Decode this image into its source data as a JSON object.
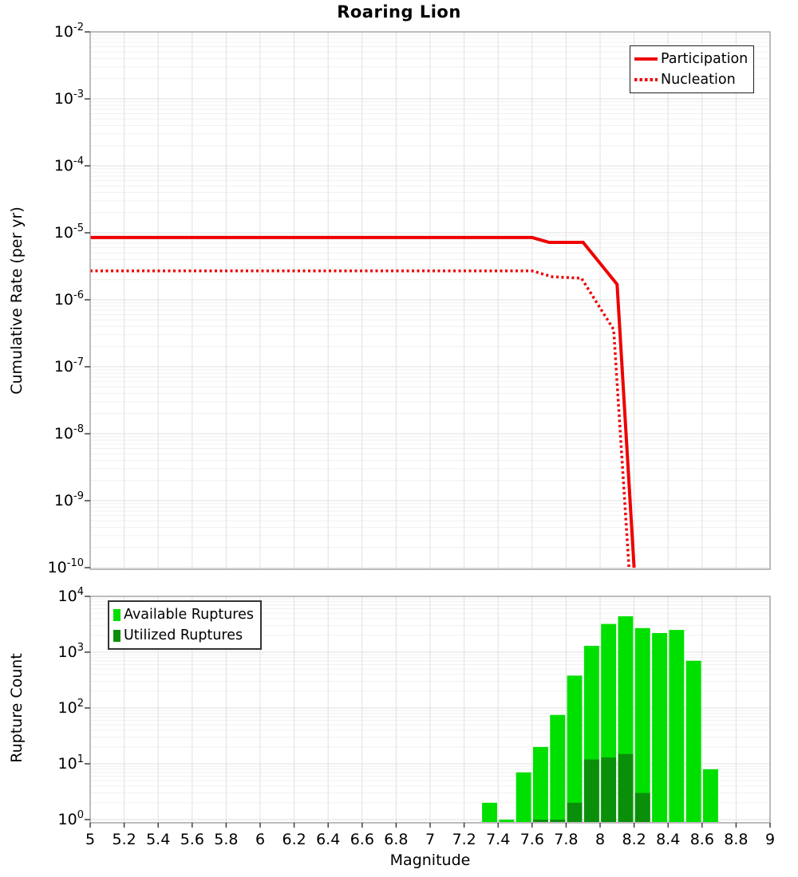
{
  "title": "Roaring Lion",
  "colors": {
    "line_red": "#ee0000",
    "available_green": "#00e000",
    "utilized_green": "#0a8f0a",
    "grid_major": "#e0e0e0",
    "grid_minor": "#f0f0f0",
    "plot_border": "#a6a6a6",
    "tick": "#333333",
    "background": "#ffffff"
  },
  "x_axis": {
    "label": "Magnitude",
    "min": 5,
    "max": 9,
    "tick_labels": [
      "5",
      "5.2",
      "5.4",
      "5.6",
      "5.8",
      "6",
      "6.2",
      "6.4",
      "6.6",
      "6.8",
      "7",
      "7.2",
      "7.4",
      "7.6",
      "7.8",
      "8",
      "8.2",
      "8.4",
      "8.6",
      "8.8",
      "9"
    ]
  },
  "chart_data": [
    {
      "type": "line",
      "panel": "top",
      "title": "Roaring Lion",
      "xlabel": "",
      "ylabel": "Cumulative Rate (per yr)",
      "x_range": [
        5,
        9
      ],
      "y_scale": "log",
      "y_range": [
        1e-10,
        0.01
      ],
      "y_tick_exponents": [
        "-2",
        "-3",
        "-4",
        "-5",
        "-6",
        "-7",
        "-8",
        "-9",
        "-10"
      ],
      "grid": true,
      "legend_position": "top-right",
      "series": [
        {
          "name": "Participation",
          "line_style": "solid",
          "color": "#ee0000",
          "points": [
            [
              5.0,
              8.5e-06
            ],
            [
              7.6,
              8.5e-06
            ],
            [
              7.7,
              7.2e-06
            ],
            [
              7.9,
              7.2e-06
            ],
            [
              8.1,
              1.7e-06
            ],
            [
              8.2,
              1e-10
            ]
          ]
        },
        {
          "name": "Nucleation",
          "line_style": "dotted",
          "color": "#ee0000",
          "points": [
            [
              5.0,
              2.7e-06
            ],
            [
              7.6,
              2.7e-06
            ],
            [
              7.72,
              2.2e-06
            ],
            [
              7.89,
              2.1e-06
            ],
            [
              8.08,
              3.6e-07
            ],
            [
              8.17,
              1e-10
            ]
          ]
        }
      ]
    },
    {
      "type": "bar",
      "panel": "bottom",
      "xlabel": "Magnitude",
      "ylabel": "Rupture Count",
      "x_range": [
        5,
        9
      ],
      "y_scale": "log",
      "y_range": [
        1,
        10000
      ],
      "y_tick_exponents": [
        "4",
        "3",
        "2",
        "1",
        "0"
      ],
      "bin_width": 0.1,
      "grid": true,
      "legend_position": "top-left",
      "series": [
        {
          "name": "Available Ruptures",
          "color": "#00e000",
          "bins": [
            [
              7.3,
              2
            ],
            [
              7.4,
              1
            ],
            [
              7.5,
              7
            ],
            [
              7.6,
              20
            ],
            [
              7.7,
              75
            ],
            [
              7.8,
              380
            ],
            [
              7.9,
              1300
            ],
            [
              8.0,
              3200
            ],
            [
              8.1,
              4400
            ],
            [
              8.2,
              2700
            ],
            [
              8.3,
              2200
            ],
            [
              8.4,
              2500
            ],
            [
              8.5,
              700
            ],
            [
              8.6,
              8
            ]
          ]
        },
        {
          "name": "Utilized Ruptures",
          "color": "#0a8f0a",
          "bins": [
            [
              7.6,
              1
            ],
            [
              7.7,
              1
            ],
            [
              7.8,
              2
            ],
            [
              7.9,
              12
            ],
            [
              8.0,
              13
            ],
            [
              8.1,
              15
            ],
            [
              8.2,
              3
            ]
          ]
        }
      ]
    }
  ]
}
